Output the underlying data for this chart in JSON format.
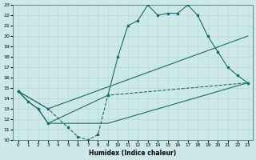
{
  "xlabel": "Humidex (Indice chaleur)",
  "xlim": [
    -0.5,
    23.5
  ],
  "ylim": [
    10,
    23
  ],
  "xticks": [
    0,
    1,
    2,
    3,
    4,
    5,
    6,
    7,
    8,
    9,
    10,
    11,
    12,
    13,
    14,
    15,
    16,
    17,
    18,
    19,
    20,
    21,
    22,
    23
  ],
  "yticks": [
    10,
    11,
    12,
    13,
    14,
    15,
    16,
    17,
    18,
    19,
    20,
    21,
    22,
    23
  ],
  "bg_color": "#cce8e8",
  "grid_color": "#aacccc",
  "line_color": "#1a6b6b",
  "line1_x": [
    0,
    1,
    2,
    3,
    9,
    10,
    11,
    12,
    13,
    14,
    15,
    16,
    17,
    18,
    19,
    20,
    21,
    22,
    23
  ],
  "line1_y": [
    14.7,
    13.7,
    13.0,
    11.6,
    14.3,
    18.0,
    21.0,
    21.5,
    23.0,
    22.0,
    22.2,
    22.2,
    23.0,
    22.0,
    20.0,
    18.5,
    17.0,
    16.2,
    15.5
  ],
  "line2_x": [
    0,
    3,
    23
  ],
  "line2_y": [
    14.7,
    13.0,
    20.0
  ],
  "line3_x": [
    0,
    1,
    2,
    3,
    4,
    5,
    6,
    7,
    8,
    9,
    23
  ],
  "line3_y": [
    14.7,
    13.7,
    13.0,
    11.6,
    11.6,
    11.6,
    11.6,
    11.6,
    11.6,
    11.6,
    15.5
  ],
  "line4_x": [
    0,
    3,
    5,
    6,
    7,
    8,
    9,
    23
  ],
  "line4_y": [
    14.7,
    13.0,
    11.2,
    10.3,
    10.0,
    10.5,
    14.3,
    15.5
  ]
}
